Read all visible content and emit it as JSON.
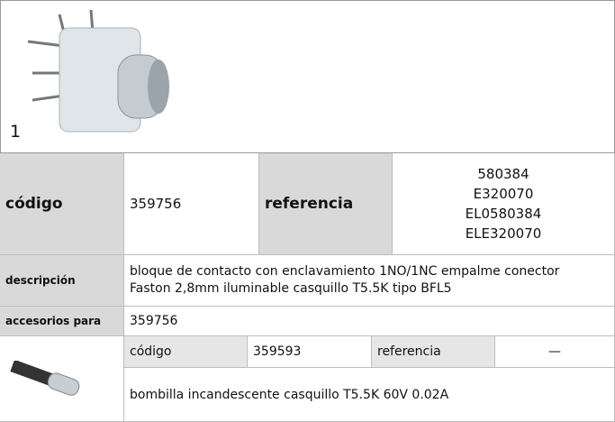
{
  "figure": {
    "number": "1"
  },
  "product": {
    "code_label": "código",
    "code": "359756",
    "ref_label": "referencia",
    "references": [
      "580384",
      "E320070",
      "EL0580384",
      "ELE320070"
    ],
    "desc_label": "descripción",
    "description": [
      "bloque de contacto  con enclavamiento 1NO/1NC empalme conector",
      "Faston 2,8mm iluminable casquillo T5.5K tipo BFL5"
    ],
    "accessory_label": "accesorios para",
    "accessory_for": "359756"
  },
  "accessory": {
    "code_label": "código",
    "code": "359593",
    "ref_label": "referencia",
    "reference": "—",
    "description": "bombilla incandescente  casquillo T5.5K 60V 0.02A"
  }
}
